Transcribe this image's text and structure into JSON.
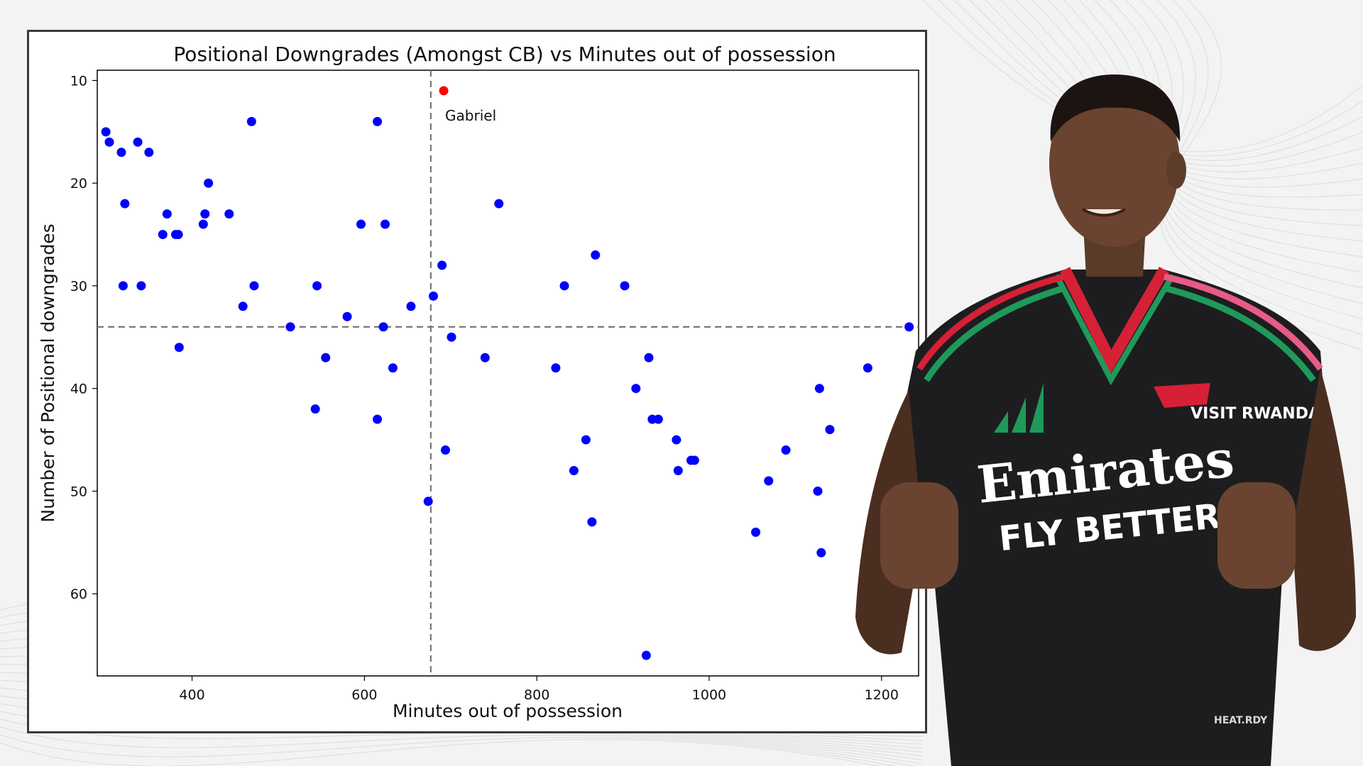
{
  "chart_data": {
    "type": "scatter",
    "title": "Positional Downgrades (Amongst CB) vs Minutes out of possession",
    "xlabel": "Minutes out of possession",
    "ylabel": "Number of Positional downgrades",
    "xlim": [
      290,
      1243
    ],
    "ylim": [
      9,
      68
    ],
    "y_inverted": true,
    "x_ticks": [
      400,
      600,
      800,
      1000,
      1200
    ],
    "y_ticks": [
      10,
      20,
      30,
      40,
      50,
      60
    ],
    "grid": false,
    "reference_lines": {
      "x": 677,
      "y": 34
    },
    "point_color": "#0000ff",
    "highlight_color": "#ff0000",
    "highlight": {
      "label": "Gabriel",
      "x": 692,
      "y": 11
    },
    "points": [
      {
        "x": 300,
        "y": 15
      },
      {
        "x": 304,
        "y": 16
      },
      {
        "x": 318,
        "y": 17
      },
      {
        "x": 322,
        "y": 22
      },
      {
        "x": 320,
        "y": 30
      },
      {
        "x": 337,
        "y": 16
      },
      {
        "x": 341,
        "y": 30
      },
      {
        "x": 350,
        "y": 17
      },
      {
        "x": 366,
        "y": 25
      },
      {
        "x": 371,
        "y": 23
      },
      {
        "x": 381,
        "y": 25
      },
      {
        "x": 384,
        "y": 25
      },
      {
        "x": 385,
        "y": 36
      },
      {
        "x": 413,
        "y": 24
      },
      {
        "x": 415,
        "y": 23
      },
      {
        "x": 419,
        "y": 20
      },
      {
        "x": 443,
        "y": 23
      },
      {
        "x": 459,
        "y": 32
      },
      {
        "x": 469,
        "y": 14
      },
      {
        "x": 472,
        "y": 30
      },
      {
        "x": 514,
        "y": 34
      },
      {
        "x": 543,
        "y": 42
      },
      {
        "x": 545,
        "y": 30
      },
      {
        "x": 555,
        "y": 37
      },
      {
        "x": 580,
        "y": 33
      },
      {
        "x": 596,
        "y": 24
      },
      {
        "x": 615,
        "y": 14
      },
      {
        "x": 615,
        "y": 43
      },
      {
        "x": 622,
        "y": 34
      },
      {
        "x": 624,
        "y": 24
      },
      {
        "x": 633,
        "y": 38
      },
      {
        "x": 654,
        "y": 32
      },
      {
        "x": 674,
        "y": 51
      },
      {
        "x": 680,
        "y": 31
      },
      {
        "x": 690,
        "y": 28
      },
      {
        "x": 694,
        "y": 46
      },
      {
        "x": 701,
        "y": 35
      },
      {
        "x": 740,
        "y": 37
      },
      {
        "x": 756,
        "y": 22
      },
      {
        "x": 822,
        "y": 38
      },
      {
        "x": 832,
        "y": 30
      },
      {
        "x": 843,
        "y": 48
      },
      {
        "x": 857,
        "y": 45
      },
      {
        "x": 864,
        "y": 53
      },
      {
        "x": 868,
        "y": 27
      },
      {
        "x": 902,
        "y": 30
      },
      {
        "x": 915,
        "y": 40
      },
      {
        "x": 927,
        "y": 66
      },
      {
        "x": 930,
        "y": 37
      },
      {
        "x": 934,
        "y": 43
      },
      {
        "x": 941,
        "y": 43
      },
      {
        "x": 962,
        "y": 45
      },
      {
        "x": 964,
        "y": 48
      },
      {
        "x": 979,
        "y": 47
      },
      {
        "x": 983,
        "y": 47
      },
      {
        "x": 1054,
        "y": 54
      },
      {
        "x": 1069,
        "y": 49
      },
      {
        "x": 1089,
        "y": 46
      },
      {
        "x": 1126,
        "y": 50
      },
      {
        "x": 1128,
        "y": 40
      },
      {
        "x": 1130,
        "y": 56
      },
      {
        "x": 1140,
        "y": 44
      },
      {
        "x": 1184,
        "y": 38
      },
      {
        "x": 1232,
        "y": 34
      }
    ]
  },
  "photo": {
    "name": "player-photo",
    "kit_color": "#1d1d1f",
    "trim_colors": [
      "#d62036",
      "#1f9a5a",
      "#e85b86"
    ],
    "sponsor_line1": "Emirates",
    "sponsor_line2": "FLY BETTER",
    "sleeve_text": "VISIT RWANDA",
    "hem_text": "HEAT.RDY"
  }
}
